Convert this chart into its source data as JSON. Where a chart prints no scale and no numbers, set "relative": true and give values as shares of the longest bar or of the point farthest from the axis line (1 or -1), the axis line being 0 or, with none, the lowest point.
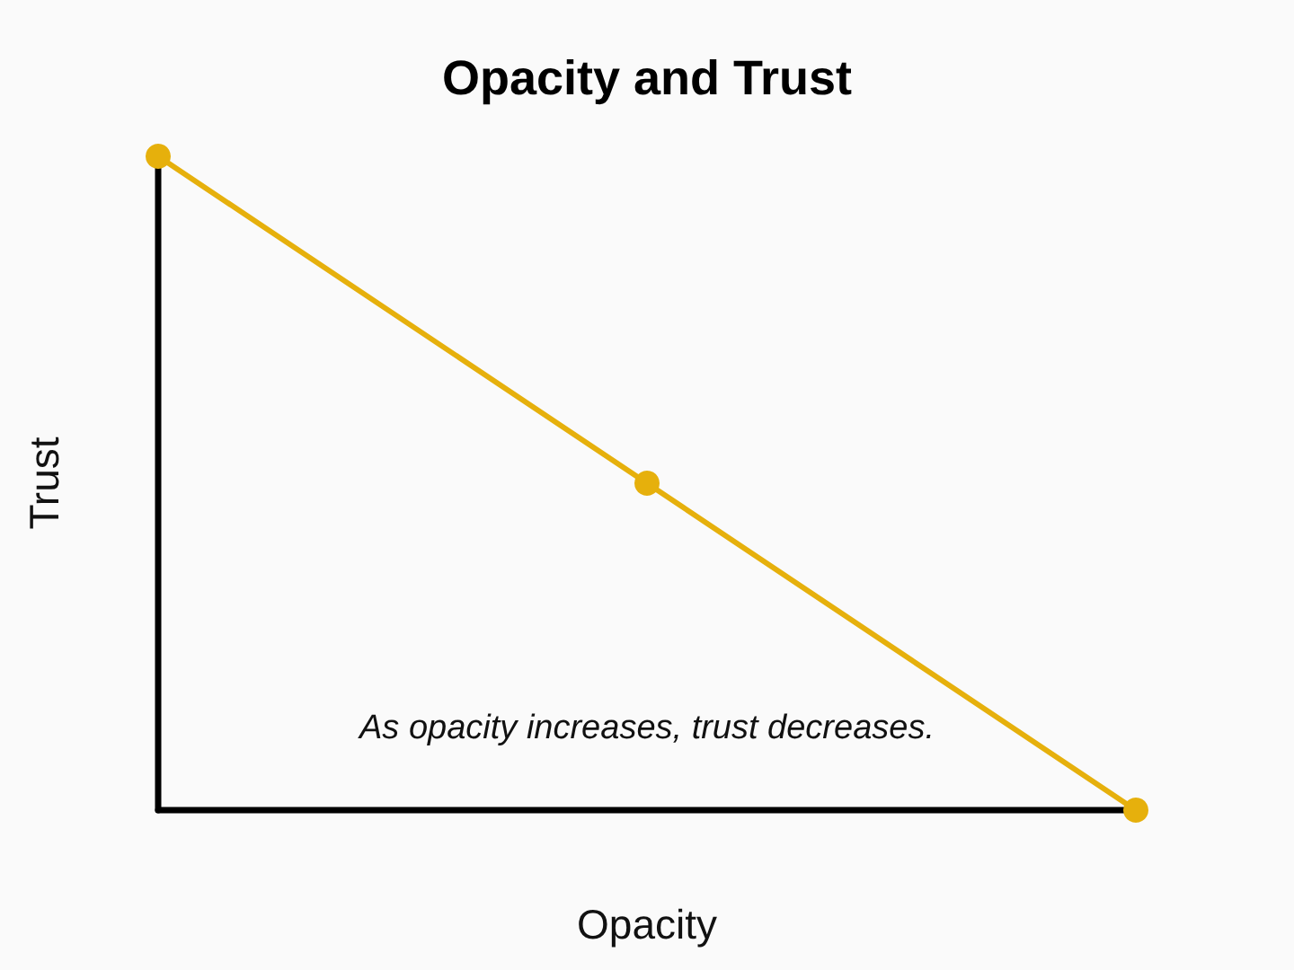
{
  "chart_data": {
    "type": "line",
    "title": "Opacity and Trust",
    "xlabel": "Opacity",
    "ylabel": "Trust",
    "annotations": [
      "As opacity increases, trust decreases."
    ],
    "categories": [
      null,
      null,
      null
    ],
    "series": [
      {
        "color": "#e6b00c",
        "values": [
          1,
          0.5,
          0
        ]
      }
    ],
    "relative": true,
    "marker": "circle"
  }
}
